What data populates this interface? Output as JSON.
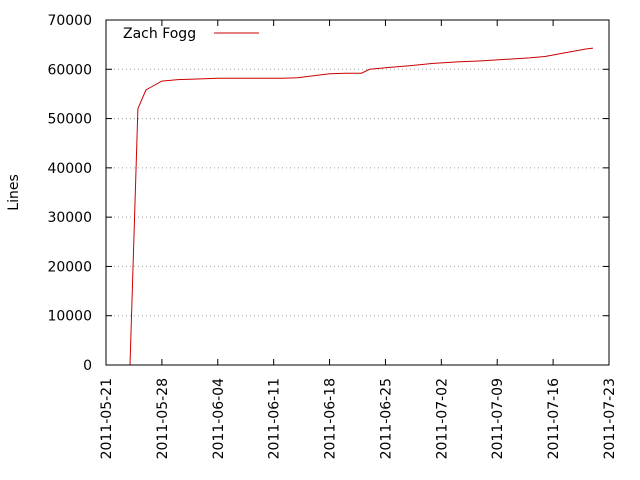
{
  "chart_data": {
    "type": "line",
    "ylabel": "Lines",
    "xlabel": "",
    "ylim": [
      0,
      70000
    ],
    "xlim": [
      "2011-05-21",
      "2011-07-23"
    ],
    "x_ticks": [
      "2011-05-21",
      "2011-05-28",
      "2011-06-04",
      "2011-06-11",
      "2011-06-18",
      "2011-06-25",
      "2011-07-02",
      "2011-07-09",
      "2011-07-16",
      "2011-07-23"
    ],
    "y_ticks": [
      "0",
      "10000",
      "20000",
      "30000",
      "40000",
      "50000",
      "60000",
      "70000"
    ],
    "grid": true,
    "grid_style": "dotted",
    "legend_placement": "top-left",
    "series": [
      {
        "name": "Zach Fogg",
        "color": "#cc0000",
        "points": [
          [
            "2011-05-24",
            0
          ],
          [
            "2011-05-25",
            52000
          ],
          [
            "2011-05-26",
            55800
          ],
          [
            "2011-05-27",
            56700
          ],
          [
            "2011-05-28",
            57600
          ],
          [
            "2011-05-30",
            57900
          ],
          [
            "2011-06-01",
            58000
          ],
          [
            "2011-06-04",
            58200
          ],
          [
            "2011-06-08",
            58200
          ],
          [
            "2011-06-12",
            58200
          ],
          [
            "2011-06-14",
            58300
          ],
          [
            "2011-06-16",
            58700
          ],
          [
            "2011-06-18",
            59100
          ],
          [
            "2011-06-20",
            59200
          ],
          [
            "2011-06-22",
            59200
          ],
          [
            "2011-06-23",
            60000
          ],
          [
            "2011-06-25",
            60300
          ],
          [
            "2011-06-28",
            60700
          ],
          [
            "2011-07-01",
            61200
          ],
          [
            "2011-07-04",
            61500
          ],
          [
            "2011-07-07",
            61700
          ],
          [
            "2011-07-10",
            62000
          ],
          [
            "2011-07-13",
            62300
          ],
          [
            "2011-07-15",
            62600
          ],
          [
            "2011-07-17",
            63200
          ],
          [
            "2011-07-19",
            63800
          ],
          [
            "2011-07-20",
            64100
          ],
          [
            "2011-07-21",
            64300
          ]
        ]
      }
    ]
  }
}
